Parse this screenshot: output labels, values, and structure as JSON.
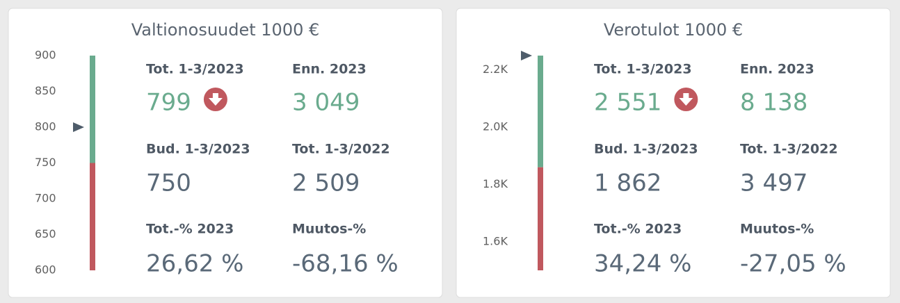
{
  "cards": [
    {
      "title": "Valtionosuudet 1000 €",
      "gauge": {
        "ylim": [
          600,
          900
        ],
        "yticks": [
          600,
          650,
          700,
          750,
          800,
          850,
          900
        ],
        "marker": 800,
        "threshold": 750,
        "color_above": "#6aab8e",
        "color_below": "#c0585e"
      },
      "metrics": [
        {
          "label": "Tot. 1-3/2023",
          "value": "799"
        },
        {
          "label": "Enn. 2023",
          "value": "3 049"
        },
        {
          "label": "Bud. 1-3/2023",
          "value": "750"
        },
        {
          "label": "Tot. 1-3/2022",
          "value": "2 509"
        },
        {
          "label": "Tot.-% 2023",
          "value": "26,62 %"
        },
        {
          "label": "Muutos-%",
          "value": "-68,16 %"
        }
      ]
    },
    {
      "title": "Verotulot 1000 €",
      "gauge": {
        "ylim": [
          1500,
          2250
        ],
        "yticks": [
          {
            "value": 1600,
            "label": "1.6K"
          },
          {
            "value": 1800,
            "label": "1.8K"
          },
          {
            "value": 2000,
            "label": "2.0K"
          },
          {
            "value": 2200,
            "label": "2.2K"
          }
        ],
        "marker": 2250,
        "threshold": 1860,
        "color_above": "#6aab8e",
        "color_below": "#c0585e"
      },
      "metrics": [
        {
          "label": "Tot. 1-3/2023",
          "value": "2 551"
        },
        {
          "label": "Enn. 2023",
          "value": "8 138"
        },
        {
          "label": "Bud. 1-3/2023",
          "value": "1 862"
        },
        {
          "label": "Tot. 1-3/2022",
          "value": "3 497"
        },
        {
          "label": "Tot.-% 2023",
          "value": "34,24 %"
        },
        {
          "label": "Muutos-%",
          "value": "-27,05 %"
        }
      ]
    }
  ]
}
